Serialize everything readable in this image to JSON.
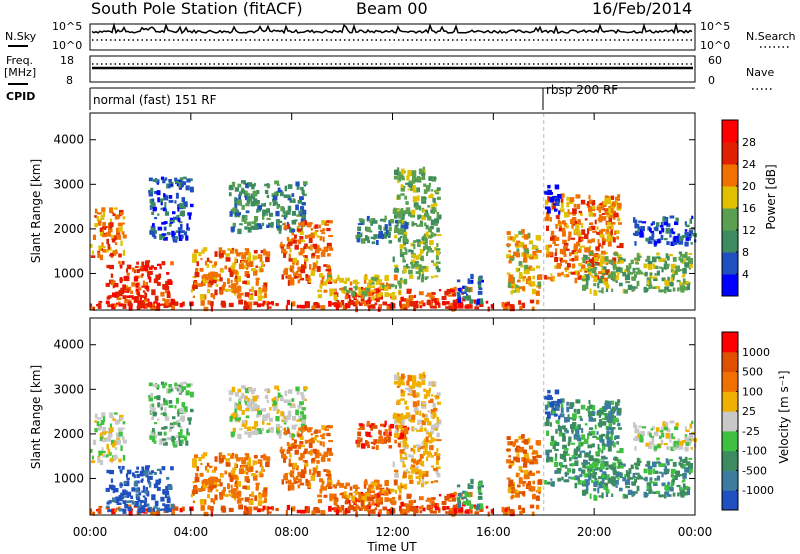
{
  "header": {
    "title": "South Pole Station (fitACF)",
    "beam": "Beam 00",
    "date": "16/Feb/2014"
  },
  "status_panels": {
    "nsky_label": "N.Sky",
    "nsky_ticks": [
      "10^5",
      "10^0"
    ],
    "nsearch_label": "N.Search",
    "nsearch_ticks": [
      "10^5",
      "10^0"
    ],
    "freq_label_1": "Freq.",
    "freq_label_2": "[MHz]",
    "freq_ticks": [
      "18",
      "8"
    ],
    "nave_label": "Nave",
    "nave_ticks": [
      "60",
      "0"
    ],
    "cpid_label": "CPID",
    "cpid_segments": [
      {
        "label": "normal (fast) 151 RF",
        "start_hour": 0
      },
      {
        "label": "rbsp 200 RF",
        "start_hour": 18
      }
    ]
  },
  "chart_data": [
    {
      "type": "heatmap",
      "name": "power",
      "ylabel": "Slant Range [km]",
      "yticks": [
        "1000",
        "2000",
        "3000",
        "4000"
      ],
      "ytick_values": [
        1000,
        2000,
        3000,
        4000
      ],
      "ylim": [
        180,
        4600
      ],
      "xlim_hours": [
        0,
        24
      ],
      "colorbar_label": "Power [dB]",
      "colorbar_ticks": [
        "4",
        "8",
        "12",
        "16",
        "20",
        "24",
        "28"
      ],
      "colorbar_colors": [
        "#0000ff",
        "#2050c0",
        "#3c8c60",
        "#5aa050",
        "#e0c000",
        "#f07000",
        "#e02000",
        "#ff0000"
      ]
    },
    {
      "type": "heatmap",
      "name": "velocity",
      "ylabel": "Slant Range [km]",
      "yticks": [
        "1000",
        "2000",
        "3000",
        "4000"
      ],
      "ytick_values": [
        1000,
        2000,
        3000,
        4000
      ],
      "ylim": [
        180,
        4600
      ],
      "xlim_hours": [
        0,
        24
      ],
      "xlabel": "Time UT",
      "xticks": [
        "00:00",
        "04:00",
        "08:00",
        "12:00",
        "16:00",
        "20:00",
        "00:00"
      ],
      "colorbar_label": "Velocity [m s⁻¹]",
      "colorbar_ticks": [
        "1000",
        "500",
        "100",
        "25",
        "-25",
        "-100",
        "-500",
        "-1000"
      ],
      "colorbar_colors": [
        "#2050c0",
        "#3c7ca0",
        "#3c8c60",
        "#40c040",
        "#c8c8c8",
        "#f0b000",
        "#f07000",
        "#e05000",
        "#ff0000"
      ]
    }
  ],
  "colors": {
    "axis": "#000000",
    "blue": "#2050c0",
    "green": "#3c8c60",
    "orange": "#f07000",
    "red": "#e02000",
    "grey": "#c8c8c8"
  }
}
